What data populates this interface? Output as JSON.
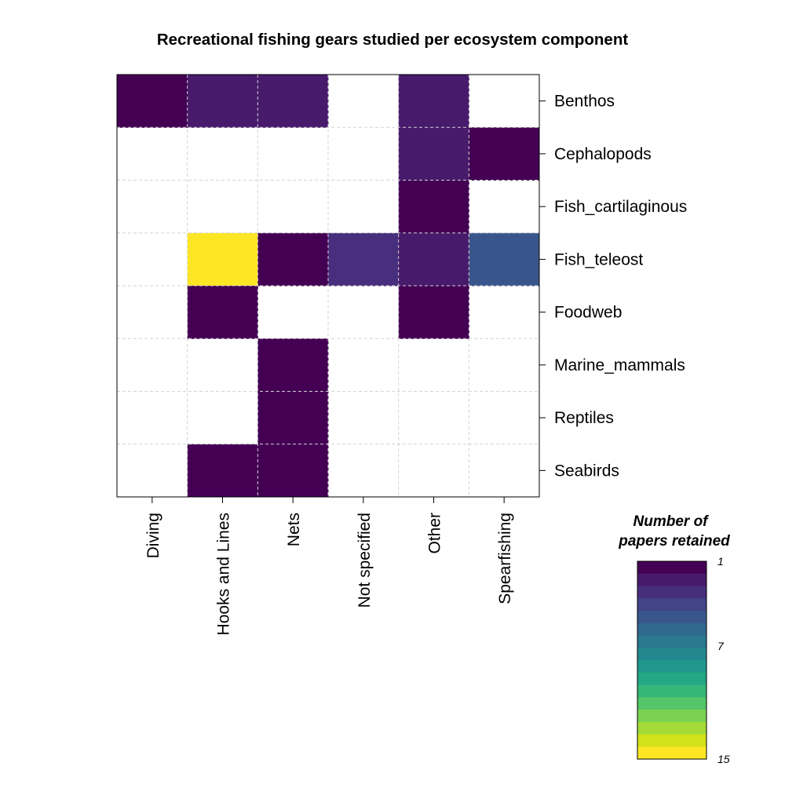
{
  "chart_data": {
    "type": "heatmap",
    "title": "Recreational fishing gears studied per ecosystem component",
    "x_categories": [
      "Diving",
      "Hooks and Lines",
      "Nets",
      "Not specified",
      "Other",
      "Spearfishing"
    ],
    "y_categories": [
      "Benthos",
      "Cephalopods",
      "Fish_cartilaginous",
      "Fish_teleost",
      "Foodweb",
      "Marine_mammals",
      "Reptiles",
      "Seabirds"
    ],
    "values": [
      [
        1,
        2,
        2,
        null,
        2,
        null
      ],
      [
        null,
        null,
        null,
        null,
        2,
        1
      ],
      [
        null,
        null,
        null,
        null,
        1,
        null
      ],
      [
        null,
        15,
        1,
        3,
        2,
        5
      ],
      [
        null,
        1,
        null,
        null,
        1,
        null
      ],
      [
        null,
        null,
        1,
        null,
        null,
        null
      ],
      [
        null,
        null,
        1,
        null,
        null,
        null
      ],
      [
        null,
        1,
        1,
        null,
        null,
        null
      ]
    ],
    "legend": {
      "title_lines": [
        "Number of",
        "papers retained"
      ],
      "min": 1,
      "max": 15,
      "ticks": [
        1,
        7,
        15
      ],
      "tick_labels": [
        "1",
        "7",
        "15"
      ]
    },
    "colormap": [
      "#440154",
      "#481a6c",
      "#472f7d",
      "#414487",
      "#39568c",
      "#31688e",
      "#2a788e",
      "#23888e",
      "#1f988b",
      "#22a884",
      "#35b779",
      "#54c568",
      "#7ad151",
      "#a5db36",
      "#d2e21b",
      "#fde725"
    ]
  }
}
